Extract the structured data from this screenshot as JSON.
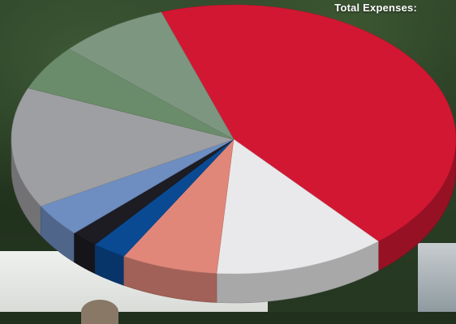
{
  "chart_data": {
    "type": "pie",
    "title": "Total Expenses:",
    "start_angle_deg": -109,
    "slices": [
      {
        "value": 44.0,
        "color": "#d21733"
      },
      {
        "value": 12.5,
        "color": "#e9e9eb"
      },
      {
        "value": 7.0,
        "color": "#e0877a"
      },
      {
        "value": 2.5,
        "color": "#0a4a93"
      },
      {
        "value": 2.0,
        "color": "#1d1c22"
      },
      {
        "value": 4.0,
        "color": "#6e8dc0"
      },
      {
        "value": 14.5,
        "color": "#9e9fa3"
      },
      {
        "value": 5.5,
        "color": "#6a8c6a"
      },
      {
        "value": 8.0,
        "color": "#7d9680"
      }
    ]
  }
}
